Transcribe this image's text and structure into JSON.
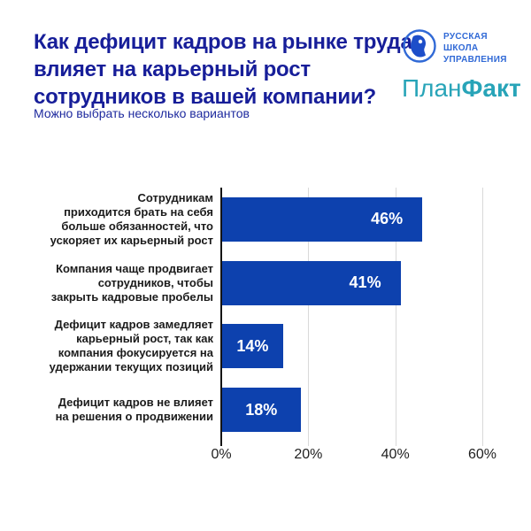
{
  "header": {
    "title": "Как дефицит кадров на рынке труда\nвлияет на карьерный рост\nсотрудников в вашей компании?",
    "subtitle": "Можно выбрать несколько вариантов"
  },
  "logos": {
    "rsu": {
      "text": "РУССКАЯ\nШКОЛА\nУПРАВЛЕНИЯ",
      "color": "#3069d6"
    },
    "planfact": {
      "part1": "План",
      "part2": "Факт",
      "color": "#28a4b8"
    }
  },
  "colors": {
    "bar": "#0d41ae",
    "title": "#171e99",
    "subtitle": "#1e2a9e",
    "gridline": "#d9d9d9",
    "axis_line": "#141414",
    "category_text": "#1b1b1b",
    "value_label_text": "#ffffff"
  },
  "chart_data": {
    "type": "bar",
    "orientation": "horizontal",
    "title": "Как дефицит кадров на рынке труда влияет на карьерный рост сотрудников в вашей компании?",
    "subtitle": "Можно выбрать несколько вариантов",
    "categories": [
      "Сотрудникам приходится брать на себя больше обязанностей, что ускоряет их карьерный рост",
      "Компания чаще продвигает сотрудников, чтобы закрыть кадровые пробелы",
      "Дефицит кадров замедляет карьерный рост, так как компания фокусируется на удержании текущих позиций",
      "Дефицит кадров не влияет на решения о продвижении"
    ],
    "category_lines": [
      [
        "Сотрудникам",
        "приходится брать на себя",
        "больше обязанностей, что",
        "ускоряет их карьерный рост"
      ],
      [
        "Компания чаще продвигает",
        "сотрудников, чтобы",
        "закрыть кадровые пробелы"
      ],
      [
        "Дефицит кадров замедляет",
        "карьерный рост, так как",
        "компания фокусируется на",
        "удержании текущих позиций"
      ],
      [
        "Дефицит кадров не влияет",
        "на решения о продвижении"
      ]
    ],
    "values": [
      46,
      41,
      14,
      18
    ],
    "value_labels": [
      "46%",
      "41%",
      "14%",
      "18%"
    ],
    "x_ticks": [
      "0%",
      "20%",
      "40%",
      "60%"
    ],
    "x_tick_values": [
      0,
      20,
      40,
      60
    ],
    "xlim": [
      0,
      60
    ],
    "grid": "vertical",
    "legend": "none"
  }
}
